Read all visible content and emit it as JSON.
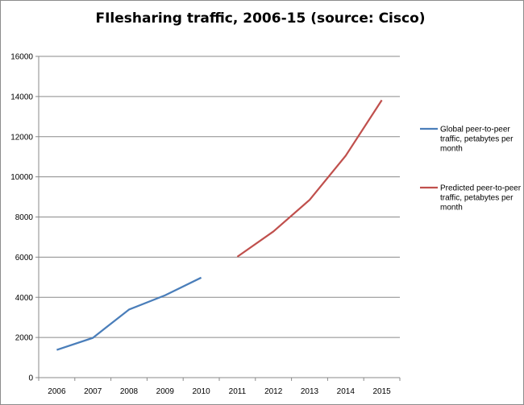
{
  "chart_data": {
    "type": "line",
    "title": "FIlesharing traffic, 2006-15 (source: Cisco)",
    "xlabel": "",
    "ylabel": "",
    "categories": [
      "2006",
      "2007",
      "2008",
      "2009",
      "2010",
      "2011",
      "2012",
      "2013",
      "2014",
      "2015"
    ],
    "ylim": [
      0,
      16000
    ],
    "yticks": [
      "0",
      "2000",
      "4000",
      "6000",
      "8000",
      "10000",
      "12000",
      "14000",
      "16000"
    ],
    "grid": true,
    "legend": "right",
    "series": [
      {
        "name": "Global peer-to-peer traffic, petabytes per month",
        "legend_lines": [
          "Global peer-to-peer",
          "traffic, petabytes per",
          "month"
        ],
        "color": "#4a7eba",
        "values": [
          1380,
          1980,
          3390,
          4100,
          4980,
          null,
          null,
          null,
          null,
          null
        ]
      },
      {
        "name": "Predicted peer-to-peer traffic, petabytes per month",
        "legend_lines": [
          "Predicted peer-to-peer",
          "traffic, petabytes per",
          "month"
        ],
        "color": "#c0504d",
        "values": [
          null,
          null,
          null,
          null,
          null,
          6020,
          7280,
          8850,
          11050,
          13820
        ]
      }
    ]
  }
}
